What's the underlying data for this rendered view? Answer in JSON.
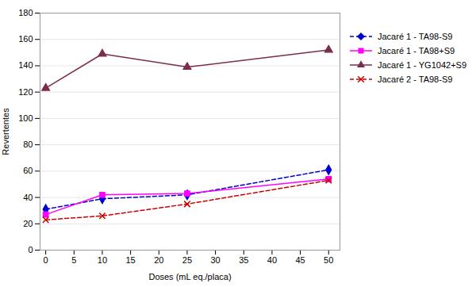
{
  "chart_data": {
    "type": "line",
    "xlabel": "Doses (mL eq./placa)",
    "ylabel": "Revertentes",
    "x": [
      0,
      10,
      25,
      50
    ],
    "series": [
      {
        "name": "Jacaré 1 - TA98-S9",
        "color": "#0000CC",
        "values": [
          31,
          39,
          42,
          61
        ],
        "marker": "diamond",
        "line_style": "dashed"
      },
      {
        "name": "Jacaré 1 - TA98+S9",
        "color": "#FF00FF",
        "values": [
          27,
          42,
          43,
          54
        ],
        "marker": "square",
        "line_style": "solid"
      },
      {
        "name": "Jacaré 1 - YG1042+S9",
        "color": "#7B2D4E",
        "values": [
          123,
          149,
          139,
          152
        ],
        "marker": "triangle",
        "line_style": "solid"
      },
      {
        "name": "Jacaré 2 - TA98-S9",
        "color": "#CC0000",
        "values": [
          23,
          26,
          35,
          53
        ],
        "marker": "times",
        "line_style": "dashed"
      }
    ],
    "xlim": [
      -1,
      52
    ],
    "ylim": [
      0,
      180
    ],
    "xticks": [
      0,
      5,
      10,
      15,
      20,
      25,
      30,
      35,
      40,
      45,
      50
    ],
    "yticks": [
      0,
      20,
      40,
      60,
      80,
      100,
      120,
      140,
      160,
      180
    ],
    "grid": true,
    "legend": "right"
  }
}
